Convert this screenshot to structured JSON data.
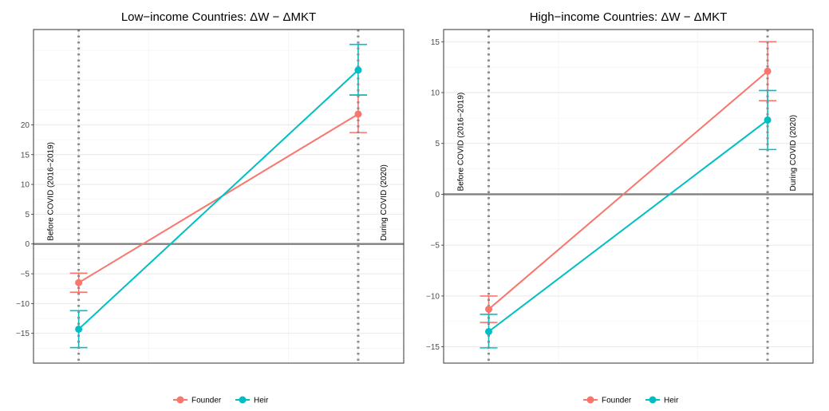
{
  "chart_data": [
    {
      "type": "line",
      "title": "Low−income Countries: ΔW − ΔMKT",
      "xlabel": "",
      "ylabel": "",
      "x": [
        "Before COVID (2016−2019)",
        "During COVID (2020)"
      ],
      "ylim": [
        -20,
        36
      ],
      "yticks": [
        -15,
        -10,
        -5,
        0,
        5,
        10,
        15,
        20
      ],
      "ytick_labels": [
        "−15",
        "−10",
        "−5",
        "0",
        "5",
        "10",
        "15",
        "20"
      ],
      "grid": true,
      "series": [
        {
          "name": "Founder",
          "color": "#f8766d",
          "values": [
            -6.5,
            21.8
          ],
          "lower": [
            -8.1,
            18.7
          ],
          "upper": [
            -4.9,
            25.0
          ]
        },
        {
          "name": "Heir",
          "color": "#00bfc4",
          "values": [
            -14.3,
            29.2
          ],
          "lower": [
            -17.4,
            25.0
          ],
          "upper": [
            -11.2,
            33.5
          ]
        }
      ],
      "hline": 0,
      "annotations": [
        "Before COVID (2016−2019)",
        "During COVID (2020)"
      ],
      "legend": [
        "Founder",
        "Heir"
      ],
      "legend_position": "bottom"
    },
    {
      "type": "line",
      "title": "High−income Countries: ΔW − ΔMKT",
      "xlabel": "",
      "ylabel": "",
      "x": [
        "Before COVID (2016−2019)",
        "During COVID (2020)"
      ],
      "ylim": [
        -16.6,
        16.2
      ],
      "yticks": [
        -15,
        -10,
        -5,
        0,
        5,
        10,
        15
      ],
      "ytick_labels": [
        "−15",
        "−10",
        "−5",
        "0",
        "5",
        "10",
        "15"
      ],
      "grid": true,
      "series": [
        {
          "name": "Founder",
          "color": "#f8766d",
          "values": [
            -11.3,
            12.1
          ],
          "lower": [
            -12.6,
            9.2
          ],
          "upper": [
            -10.0,
            15.0
          ]
        },
        {
          "name": "Heir",
          "color": "#00bfc4",
          "values": [
            -13.5,
            7.3
          ],
          "lower": [
            -15.1,
            4.4
          ],
          "upper": [
            -11.8,
            10.2
          ]
        }
      ],
      "hline": 0,
      "annotations": [
        "Before COVID (2016−2019)",
        "During COVID (2020)"
      ],
      "legend": [
        "Founder",
        "Heir"
      ],
      "legend_position": "bottom"
    }
  ]
}
